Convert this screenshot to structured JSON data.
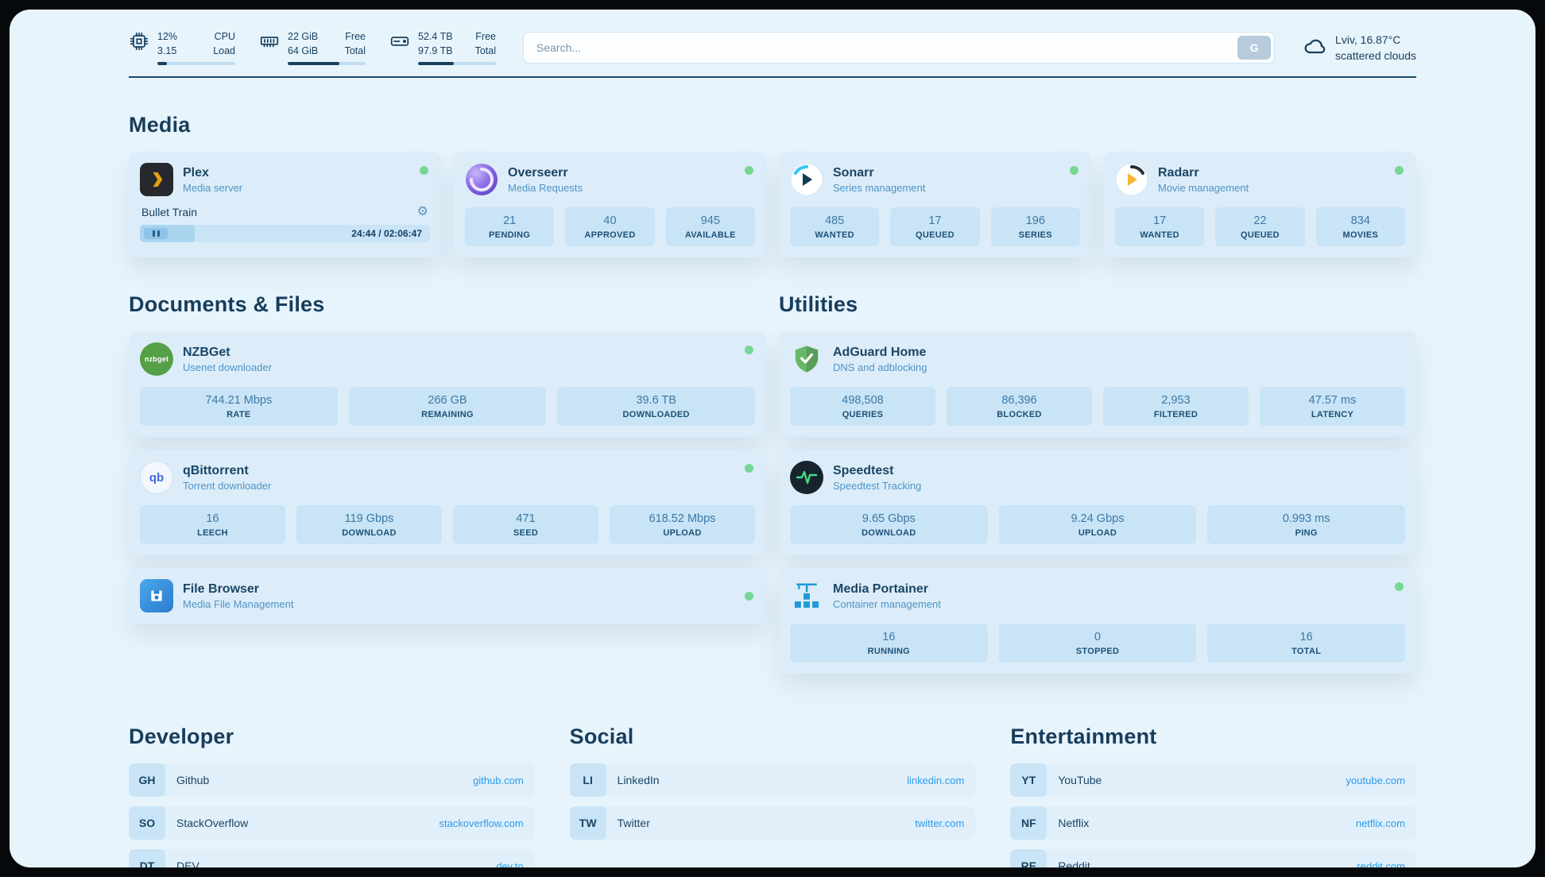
{
  "theme": {
    "page_bg": "#e8f4fc",
    "card_bg": "#dcedf9",
    "stat_bg": "#c8e4f6",
    "accent_dark": "#17405f",
    "link_blue": "#2e9ceb",
    "status_online_green": "#77d795"
  },
  "topbar": {
    "cpu": {
      "top_value": "12%",
      "bottom_value": "3.15",
      "top_label": "CPU",
      "bottom_label": "Load",
      "used_percent": 12
    },
    "ram": {
      "top_value": "22 GiB",
      "bottom_value": "64 GiB",
      "top_label": "Free",
      "bottom_label": "Total",
      "used_percent": 66
    },
    "disk": {
      "top_value": "52.4 TB",
      "bottom_value": "97.9 TB",
      "top_label": "Free",
      "bottom_label": "Total",
      "used_percent": 46
    },
    "search": {
      "placeholder": "Search...",
      "button_label": "G"
    },
    "weather": {
      "location": "Lviv, 16.87°C",
      "condition": "scattered clouds"
    }
  },
  "media": {
    "title": "Media",
    "plex": {
      "name": "Plex",
      "subtitle": "Media server",
      "online": true,
      "now_playing": "Bullet Train",
      "time_display": "24:44 / 02:06:47",
      "progress_percent": 19,
      "gear_icon": "⚙"
    },
    "overseerr": {
      "name": "Overseerr",
      "subtitle": "Media Requests",
      "online": true,
      "stats": [
        {
          "value": "21",
          "label": "PENDING"
        },
        {
          "value": "40",
          "label": "APPROVED"
        },
        {
          "value": "945",
          "label": "AVAILABLE"
        }
      ]
    },
    "sonarr": {
      "name": "Sonarr",
      "subtitle": "Series management",
      "online": true,
      "stats": [
        {
          "value": "485",
          "label": "WANTED"
        },
        {
          "value": "17",
          "label": "QUEUED"
        },
        {
          "value": "196",
          "label": "SERIES"
        }
      ]
    },
    "radarr": {
      "name": "Radarr",
      "subtitle": "Movie management",
      "online": true,
      "stats": [
        {
          "value": "17",
          "label": "WANTED"
        },
        {
          "value": "22",
          "label": "QUEUED"
        },
        {
          "value": "834",
          "label": "MOVIES"
        }
      ]
    }
  },
  "documents": {
    "title": "Documents & Files",
    "nzbget": {
      "name": "NZBGet",
      "subtitle": "Usenet downloader",
      "online": true,
      "stats": [
        {
          "value": "744.21 Mbps",
          "label": "RATE"
        },
        {
          "value": "266 GB",
          "label": "REMAINING"
        },
        {
          "value": "39.6 TB",
          "label": "DOWNLOADED"
        }
      ]
    },
    "qbittorrent": {
      "name": "qBittorrent",
      "subtitle": "Torrent downloader",
      "online": true,
      "stats": [
        {
          "value": "16",
          "label": "LEECH"
        },
        {
          "value": "119 Gbps",
          "label": "DOWNLOAD"
        },
        {
          "value": "471",
          "label": "SEED"
        },
        {
          "value": "618.52 Mbps",
          "label": "UPLOAD"
        }
      ]
    },
    "filebrowser": {
      "name": "File Browser",
      "subtitle": "Media File Management",
      "online": true
    }
  },
  "utilities": {
    "title": "Utilities",
    "adguard": {
      "name": "AdGuard Home",
      "subtitle": "DNS and adblocking",
      "stats": [
        {
          "value": "498,508",
          "label": "QUERIES"
        },
        {
          "value": "86,396",
          "label": "BLOCKED"
        },
        {
          "value": "2,953",
          "label": "FILTERED"
        },
        {
          "value": "47.57 ms",
          "label": "LATENCY"
        }
      ]
    },
    "speedtest": {
      "name": "Speedtest",
      "subtitle": "Speedtest Tracking",
      "stats": [
        {
          "value": "9.65 Gbps",
          "label": "DOWNLOAD"
        },
        {
          "value": "9.24 Gbps",
          "label": "UPLOAD"
        },
        {
          "value": "0.993 ms",
          "label": "PING"
        }
      ]
    },
    "portainer": {
      "name": "Media Portainer",
      "subtitle": "Container management",
      "online": true,
      "stats": [
        {
          "value": "16",
          "label": "RUNNING"
        },
        {
          "value": "0",
          "label": "STOPPED"
        },
        {
          "value": "16",
          "label": "TOTAL"
        }
      ]
    }
  },
  "bookmarks": {
    "developer": {
      "title": "Developer",
      "links": [
        {
          "abbr": "GH",
          "name": "Github",
          "url": "github.com"
        },
        {
          "abbr": "SO",
          "name": "StackOverflow",
          "url": "stackoverflow.com"
        },
        {
          "abbr": "DT",
          "name": "DEV",
          "url": "dev.to"
        }
      ]
    },
    "social": {
      "title": "Social",
      "links": [
        {
          "abbr": "LI",
          "name": "LinkedIn",
          "url": "linkedin.com"
        },
        {
          "abbr": "TW",
          "name": "Twitter",
          "url": "twitter.com"
        }
      ]
    },
    "entertainment": {
      "title": "Entertainment",
      "links": [
        {
          "abbr": "YT",
          "name": "YouTube",
          "url": "youtube.com"
        },
        {
          "abbr": "NF",
          "name": "Netflix",
          "url": "netflix.com"
        },
        {
          "abbr": "RE",
          "name": "Reddit",
          "url": "reddit.com"
        }
      ]
    }
  }
}
